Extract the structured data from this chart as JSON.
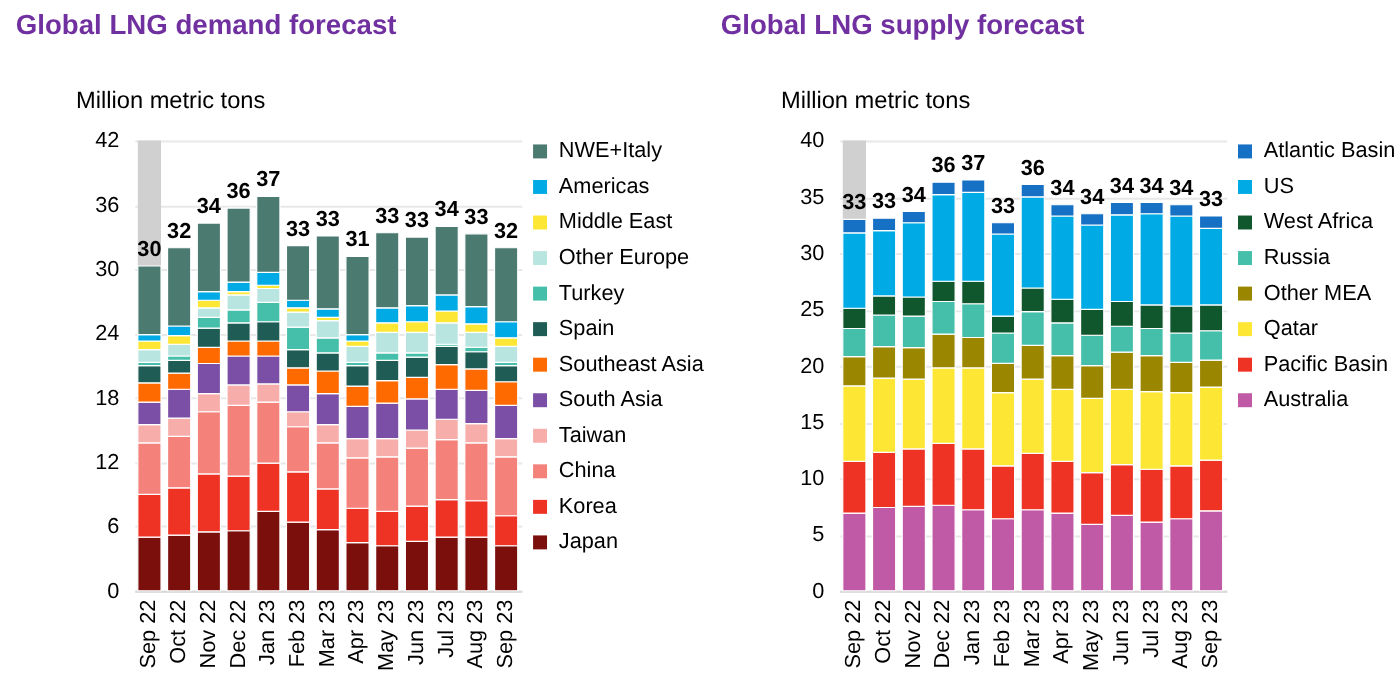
{
  "chart_data": [
    {
      "type": "bar",
      "stacked": true,
      "title": "Global LNG demand forecast",
      "ylabel": "Million metric tons",
      "categories": [
        "Sep 22",
        "Oct 22",
        "Nov 22",
        "Dec 22",
        "Jan 23",
        "Feb 23",
        "Mar 23",
        "Apr 23",
        "May 23",
        "Jun 23",
        "Jul 23",
        "Aug 23",
        "Sep 23"
      ],
      "series": [
        {
          "name": "Japan",
          "color": "#7b0f0c",
          "values": [
            5.0,
            5.2,
            5.5,
            5.6,
            7.4,
            6.4,
            5.7,
            4.5,
            4.2,
            4.6,
            5.0,
            5.0,
            4.2
          ]
        },
        {
          "name": "Korea",
          "color": "#ee3224",
          "values": [
            4.0,
            4.4,
            5.4,
            5.1,
            4.5,
            4.7,
            3.8,
            3.2,
            3.2,
            3.3,
            3.5,
            3.4,
            2.8
          ]
        },
        {
          "name": "China",
          "color": "#f4817a",
          "values": [
            4.8,
            4.8,
            5.8,
            6.6,
            5.7,
            4.2,
            4.3,
            4.7,
            5.1,
            5.4,
            5.6,
            5.4,
            5.5
          ]
        },
        {
          "name": "Taiwan",
          "color": "#f7aeaa",
          "values": [
            1.7,
            1.7,
            1.7,
            1.9,
            1.7,
            1.4,
            1.7,
            1.8,
            1.7,
            1.7,
            1.9,
            1.8,
            1.7
          ]
        },
        {
          "name": "South Asia",
          "color": "#7b4fa6",
          "values": [
            2.1,
            2.7,
            2.8,
            2.7,
            2.6,
            2.5,
            2.9,
            3.0,
            3.3,
            2.9,
            2.8,
            3.1,
            3.1
          ]
        },
        {
          "name": "Southeast Asia",
          "color": "#ff6a00",
          "values": [
            1.8,
            1.5,
            1.5,
            1.4,
            1.4,
            1.6,
            2.1,
            1.9,
            2.1,
            2.0,
            2.3,
            2.0,
            2.2
          ]
        },
        {
          "name": "Spain",
          "color": "#1e5c55",
          "values": [
            1.6,
            1.2,
            1.8,
            1.7,
            1.8,
            1.7,
            1.7,
            1.9,
            1.9,
            1.9,
            1.7,
            1.6,
            1.5
          ]
        },
        {
          "name": "Turkey",
          "color": "#45bfa9",
          "values": [
            0.3,
            0.4,
            1.0,
            1.2,
            1.8,
            2.1,
            1.4,
            0.3,
            0.7,
            0.4,
            0.2,
            0.4,
            0.3
          ]
        },
        {
          "name": "Other Europe",
          "color": "#b9e5e0",
          "values": [
            1.2,
            1.1,
            0.9,
            1.4,
            1.3,
            1.4,
            1.6,
            1.5,
            1.9,
            1.9,
            2.0,
            1.4,
            1.5
          ]
        },
        {
          "name": "Middle East",
          "color": "#fde634",
          "values": [
            0.8,
            0.8,
            0.7,
            0.3,
            0.3,
            0.4,
            0.3,
            0.5,
            0.9,
            1.0,
            1.1,
            0.8,
            0.8
          ]
        },
        {
          "name": "Americas",
          "color": "#00abe5",
          "values": [
            0.6,
            0.9,
            0.8,
            0.9,
            1.2,
            0.7,
            0.8,
            0.6,
            1.4,
            1.5,
            1.5,
            1.6,
            1.5
          ]
        },
        {
          "name": "NWE+Italy",
          "color": "#4a7a70",
          "values": [
            6.4,
            7.3,
            6.4,
            6.9,
            7.1,
            5.1,
            6.8,
            7.3,
            7.0,
            6.4,
            6.4,
            6.8,
            6.9
          ]
        }
      ],
      "totals": [
        "30",
        "32",
        "34",
        "36",
        "37",
        "33",
        "33",
        "31",
        "33",
        "33",
        "34",
        "33",
        "32"
      ],
      "bands": [
        {
          "axis": "x",
          "from": "Sep 22",
          "to": "Sep 22",
          "color": "#d0d0d0"
        }
      ],
      "ylim": [
        0,
        42
      ],
      "yticks": [
        0,
        6,
        12,
        18,
        24,
        30,
        36,
        42
      ],
      "grid": "y",
      "legend": "right"
    },
    {
      "type": "bar",
      "stacked": true,
      "title": "Global LNG supply forecast",
      "ylabel": "Million metric tons",
      "categories": [
        "Sep 22",
        "Oct 22",
        "Nov 22",
        "Dec 22",
        "Jan 23",
        "Feb 23",
        "Mar 23",
        "Apr 23",
        "May 23",
        "Jun 23",
        "Jul 23",
        "Aug 23",
        "Sep 23"
      ],
      "series": [
        {
          "name": "Australia",
          "color": "#c05aa6",
          "values": [
            6.9,
            7.4,
            7.5,
            7.6,
            7.2,
            6.4,
            7.2,
            6.9,
            5.9,
            6.7,
            6.1,
            6.4,
            7.1
          ]
        },
        {
          "name": "Pacific Basin",
          "color": "#ee3224",
          "values": [
            4.6,
            4.9,
            5.1,
            5.5,
            5.4,
            4.7,
            5.0,
            4.6,
            4.6,
            4.5,
            4.7,
            4.7,
            4.5
          ]
        },
        {
          "name": "Qatar",
          "color": "#fde634",
          "values": [
            6.7,
            6.6,
            6.2,
            6.7,
            7.2,
            6.5,
            6.6,
            6.4,
            6.6,
            6.7,
            6.9,
            6.5,
            6.5
          ]
        },
        {
          "name": "Other MEA",
          "color": "#9b8600",
          "values": [
            2.6,
            2.8,
            2.8,
            3.0,
            2.7,
            2.6,
            3.0,
            3.0,
            2.9,
            3.3,
            3.2,
            2.7,
            2.4
          ]
        },
        {
          "name": "Russia",
          "color": "#45bfa9",
          "values": [
            2.5,
            2.8,
            2.8,
            2.9,
            3.0,
            2.7,
            3.0,
            2.9,
            2.7,
            2.3,
            2.4,
            2.6,
            2.6
          ]
        },
        {
          "name": "West Africa",
          "color": "#11572e",
          "values": [
            1.8,
            1.7,
            1.7,
            1.8,
            2.0,
            1.5,
            2.1,
            2.1,
            2.3,
            2.2,
            2.1,
            2.4,
            2.3
          ]
        },
        {
          "name": "US",
          "color": "#00abe5",
          "values": [
            6.7,
            5.8,
            6.6,
            7.7,
            7.9,
            7.3,
            8.1,
            7.4,
            7.5,
            7.7,
            8.1,
            8.0,
            6.8
          ]
        },
        {
          "name": "Atlantic Basin",
          "color": "#1670c4",
          "values": [
            1.2,
            1.1,
            1.0,
            1.1,
            1.1,
            1.0,
            1.1,
            1.0,
            1.0,
            1.1,
            1.0,
            1.0,
            1.1
          ]
        }
      ],
      "totals": [
        "33",
        "33",
        "34",
        "36",
        "37",
        "33",
        "36",
        "34",
        "34",
        "34",
        "34",
        "34",
        "33"
      ],
      "bands": [
        {
          "axis": "x",
          "from": "Sep 22",
          "to": "Sep 22",
          "color": "#d0d0d0"
        }
      ],
      "ylim": [
        0,
        40
      ],
      "yticks": [
        0,
        5,
        10,
        15,
        20,
        25,
        30,
        35,
        40
      ],
      "grid": "y",
      "legend": "right"
    }
  ]
}
